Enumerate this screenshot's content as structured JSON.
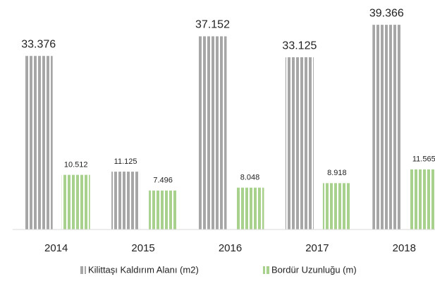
{
  "chart_data": {
    "type": "bar",
    "categories": [
      "2014",
      "2015",
      "2016",
      "2017",
      "2018"
    ],
    "series": [
      {
        "name": "Kilittaşı Kaldırım Alanı (m2)",
        "color": "#a6a6a6",
        "values": [
          33376,
          11125,
          37152,
          33125,
          39366
        ],
        "value_labels": [
          "33.376",
          "11.125",
          "37.152",
          "33.125",
          "39.366"
        ]
      },
      {
        "name": "Bordür Uzunluğu (m)",
        "color": "#a9d18e",
        "values": [
          10512,
          7496,
          8048,
          8918,
          11565
        ],
        "value_labels": [
          "10.512",
          "7.496",
          "8.048",
          "8.918",
          "11.565"
        ]
      }
    ],
    "ylim": [
      0,
      44000
    ],
    "legend": "bottom"
  }
}
